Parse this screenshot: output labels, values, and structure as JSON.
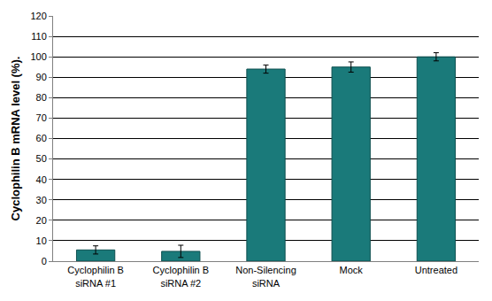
{
  "chart_data": {
    "type": "bar",
    "y_label": "Cyclophilin B mRNA level (%).",
    "categories": [
      "Cyclophilin B siRNA #1",
      "Cyclophilin B siRNA #2",
      "Non-Silencing siRNA",
      "Mock",
      "Untreated"
    ],
    "values": [
      5.5,
      4.8,
      94,
      95,
      100
    ],
    "errors": [
      2,
      3,
      2,
      2.5,
      2
    ],
    "color": "#1a7a7a",
    "ylim": [
      0,
      120
    ],
    "yticks": [
      0,
      10,
      20,
      30,
      40,
      50,
      60,
      70,
      80,
      90,
      100,
      110,
      120
    ],
    "grid": true
  }
}
